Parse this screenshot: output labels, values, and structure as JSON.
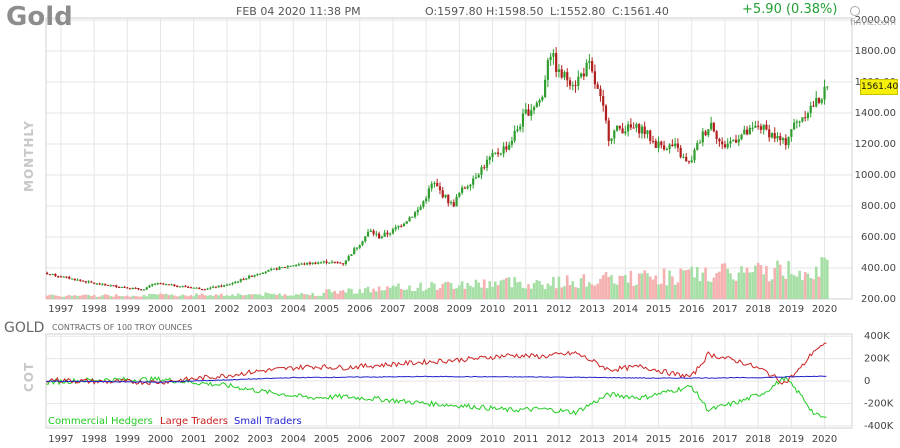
{
  "header": {
    "ticker": "Gold",
    "datetime": "FEB 04 2020 11:38 PM",
    "open": "O:1597.80",
    "high": "H:1598.50",
    "low": "L:1552.80",
    "close": "C:1561.40",
    "change": "+5.90 (0.38%)",
    "brand": "finviz.com"
  },
  "labels": {
    "price_panel": "MONTHLY",
    "cot_panel": "COT",
    "cot_title": "GOLD",
    "cot_subtitle": "CONTRACTS OF 100 TROY OUNCES",
    "last_price": "1561.40"
  },
  "legend": [
    {
      "label": "Commercial Hedgers",
      "color": "#22cc22"
    },
    {
      "label": "Large Traders",
      "color": "#cc2222"
    },
    {
      "label": "Small Traders",
      "color": "#2222cc"
    }
  ],
  "colors": {
    "up": "#2f9e2f",
    "down": "#b21e1e",
    "vol_up": "#a6dfa6",
    "vol_down": "#f5b0b0",
    "grid": "#e6e6e6"
  },
  "chart_data": [
    {
      "type": "candlestick",
      "title": "Gold",
      "interval": "monthly",
      "x_tick_labels": [
        "1997",
        "1998",
        "1999",
        "2000",
        "2001",
        "2002",
        "2003",
        "2004",
        "2005",
        "2006",
        "2007",
        "2008",
        "2009",
        "2010",
        "2011",
        "2012",
        "2013",
        "2014",
        "2015",
        "2016",
        "2017",
        "2018",
        "2019",
        "2020"
      ],
      "y_tick_labels": [
        "2000.00",
        "1800.00",
        "1600.00",
        "1400.00",
        "1200.00",
        "1000.00",
        "800.00",
        "600.00",
        "400.00",
        "200.00"
      ],
      "ylim": [
        200,
        2000
      ],
      "xlim": [
        1996.0,
        2020.2
      ],
      "grid": true,
      "close_anchors": {
        "x": [
          1996.0,
          1997.0,
          1998.0,
          1999.5,
          1999.8,
          2000.5,
          2001.3,
          2002.0,
          2003.0,
          2004.0,
          2005.0,
          2005.5,
          2006.3,
          2006.6,
          2007.0,
          2007.8,
          2008.2,
          2008.8,
          2009.0,
          2009.9,
          2010.5,
          2011.0,
          2011.5,
          2011.7,
          2012.0,
          2012.5,
          2012.9,
          2013.3,
          2013.5,
          2013.8,
          2014.5,
          2014.9,
          2015.5,
          2015.9,
          2016.3,
          2016.6,
          2016.9,
          2017.5,
          2017.8,
          2018.0,
          2018.5,
          2018.8,
          2019.0,
          2019.5,
          2019.8,
          2020.1
        ],
        "close": [
          388,
          345,
          300,
          260,
          300,
          285,
          265,
          290,
          370,
          420,
          440,
          430,
          640,
          600,
          640,
          780,
          950,
          800,
          880,
          1100,
          1200,
          1400,
          1500,
          1820,
          1650,
          1600,
          1710,
          1450,
          1250,
          1300,
          1300,
          1200,
          1180,
          1060,
          1250,
          1340,
          1180,
          1260,
          1280,
          1320,
          1250,
          1200,
          1300,
          1420,
          1480,
          1561
        ]
      },
      "volume_ylim": [
        0,
        600000
      ]
    },
    {
      "type": "line",
      "title": "GOLD",
      "subtitle": "CONTRACTS OF 100 TROY OUNCES",
      "x_tick_labels": [
        "1997",
        "1998",
        "1999",
        "2000",
        "2001",
        "2002",
        "2003",
        "2004",
        "2005",
        "2006",
        "2007",
        "2008",
        "2009",
        "2010",
        "2011",
        "2012",
        "2013",
        "2014",
        "2015",
        "2016",
        "2017",
        "2018",
        "2019",
        "2020"
      ],
      "y_tick_labels": [
        "400K",
        "200K",
        "0",
        "-200K",
        "-400K"
      ],
      "ylim": [
        -420000,
        420000
      ],
      "series": [
        {
          "name": "Commercial Hedgers",
          "x": [
            1996.0,
            1998.0,
            2000.0,
            2002.0,
            2003.0,
            2004.5,
            2005.5,
            2006.5,
            2008.0,
            2009.5,
            2010.5,
            2011.5,
            2012.5,
            2013.0,
            2013.5,
            2014.5,
            2015.5,
            2016.0,
            2016.5,
            2017.5,
            2018.2,
            2018.8,
            2019.3,
            2019.7,
            2020.1
          ],
          "values": [
            -20000,
            10000,
            15000,
            -40000,
            -90000,
            -150000,
            -140000,
            -160000,
            -200000,
            -230000,
            -260000,
            -250000,
            -280000,
            -200000,
            -120000,
            -150000,
            -80000,
            -50000,
            -260000,
            -180000,
            -100000,
            30000,
            -130000,
            -300000,
            -340000
          ]
        },
        {
          "name": "Large Traders",
          "x": [
            1996.0,
            1998.0,
            2000.0,
            2002.0,
            2003.0,
            2004.5,
            2005.5,
            2006.5,
            2008.0,
            2009.5,
            2010.5,
            2011.5,
            2012.5,
            2013.0,
            2013.5,
            2014.5,
            2015.5,
            2016.0,
            2016.5,
            2017.5,
            2018.2,
            2018.8,
            2019.3,
            2019.7,
            2020.1
          ],
          "values": [
            20000,
            -5000,
            -10000,
            50000,
            90000,
            130000,
            120000,
            140000,
            170000,
            200000,
            230000,
            220000,
            250000,
            180000,
            100000,
            130000,
            60000,
            40000,
            240000,
            170000,
            90000,
            -20000,
            120000,
            280000,
            330000
          ]
        },
        {
          "name": "Small Traders",
          "x": [
            1996.0,
            2000.0,
            2004.0,
            2008.0,
            2012.0,
            2015.0,
            2018.0,
            2020.1
          ],
          "values": [
            0,
            -10000,
            30000,
            40000,
            35000,
            25000,
            30000,
            45000
          ]
        }
      ]
    }
  ]
}
